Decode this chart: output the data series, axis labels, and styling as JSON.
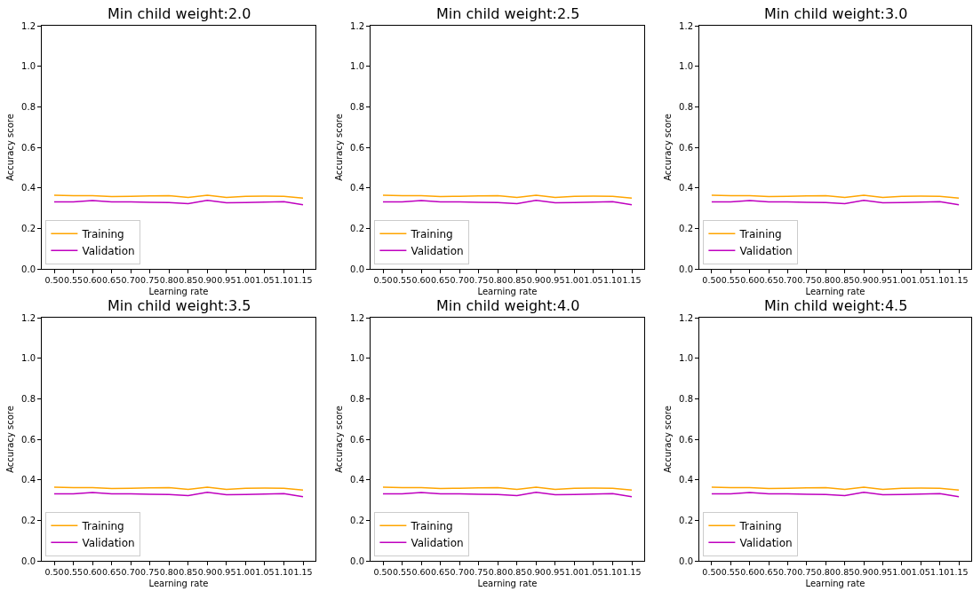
{
  "chart_data": [
    {
      "type": "line",
      "title": "Min child weight:2.0",
      "xlabel": "Learning rate",
      "ylabel": "Accuracy score",
      "x": [
        0.5,
        0.55,
        0.6,
        0.65,
        0.7,
        0.75,
        0.8,
        0.85,
        0.9,
        0.95,
        1.0,
        1.05,
        1.1,
        1.15
      ],
      "xlim": [
        0.4675,
        1.1825
      ],
      "xticks": [
        {
          "value": 0.5,
          "label": "0.50"
        },
        {
          "value": 0.55,
          "label": "0.55"
        },
        {
          "value": 0.6,
          "label": "0.60"
        },
        {
          "value": 0.65,
          "label": "0.65"
        },
        {
          "value": 0.7,
          "label": "0.70"
        },
        {
          "value": 0.75,
          "label": "0.75"
        },
        {
          "value": 0.8,
          "label": "0.80"
        },
        {
          "value": 0.85,
          "label": "0.85"
        },
        {
          "value": 0.9,
          "label": "0.90"
        },
        {
          "value": 0.95,
          "label": "0.95"
        },
        {
          "value": 1.0,
          "label": "1.00"
        },
        {
          "value": 1.05,
          "label": "1.05"
        },
        {
          "value": 1.1,
          "label": "1.10"
        },
        {
          "value": 1.15,
          "label": "1.15"
        }
      ],
      "ylim": [
        0,
        1.2
      ],
      "yticks": [
        {
          "value": 0,
          "label": "0.0"
        },
        {
          "value": 0.2,
          "label": "0.2"
        },
        {
          "value": 0.4,
          "label": "0.4"
        },
        {
          "value": 0.6,
          "label": "0.6"
        },
        {
          "value": 0.8,
          "label": "0.8"
        },
        {
          "value": 1.0,
          "label": "1.0"
        },
        {
          "value": 1.2,
          "label": "1.2"
        }
      ],
      "grid": false,
      "legend": "bottom left",
      "marker": "none",
      "line_style": "solid",
      "series": [
        {
          "name": "Training",
          "color": "#ffa500",
          "values": [
            0.363,
            0.361,
            0.361,
            0.357,
            0.358,
            0.36,
            0.361,
            0.353,
            0.363,
            0.353,
            0.358,
            0.359,
            0.358,
            0.349
          ]
        },
        {
          "name": "Validation",
          "color": "#bf00bf",
          "values": [
            0.331,
            0.331,
            0.337,
            0.331,
            0.331,
            0.328,
            0.327,
            0.322,
            0.338,
            0.326,
            0.327,
            0.33,
            0.332,
            0.316
          ]
        }
      ]
    },
    {
      "type": "line",
      "title": "Min child weight:2.5",
      "xlabel": "Learning rate",
      "ylabel": "Accuracy score",
      "x": [
        0.5,
        0.55,
        0.6,
        0.65,
        0.7,
        0.75,
        0.8,
        0.85,
        0.9,
        0.95,
        1.0,
        1.05,
        1.1,
        1.15
      ],
      "xlim": [
        0.4675,
        1.1825
      ],
      "xticks": [
        {
          "value": 0.5,
          "label": "0.50"
        },
        {
          "value": 0.55,
          "label": "0.55"
        },
        {
          "value": 0.6,
          "label": "0.60"
        },
        {
          "value": 0.65,
          "label": "0.65"
        },
        {
          "value": 0.7,
          "label": "0.70"
        },
        {
          "value": 0.75,
          "label": "0.75"
        },
        {
          "value": 0.8,
          "label": "0.80"
        },
        {
          "value": 0.85,
          "label": "0.85"
        },
        {
          "value": 0.9,
          "label": "0.90"
        },
        {
          "value": 0.95,
          "label": "0.95"
        },
        {
          "value": 1.0,
          "label": "1.00"
        },
        {
          "value": 1.05,
          "label": "1.05"
        },
        {
          "value": 1.1,
          "label": "1.10"
        },
        {
          "value": 1.15,
          "label": "1.15"
        }
      ],
      "ylim": [
        0,
        1.2
      ],
      "yticks": [
        {
          "value": 0,
          "label": "0.0"
        },
        {
          "value": 0.2,
          "label": "0.2"
        },
        {
          "value": 0.4,
          "label": "0.4"
        },
        {
          "value": 0.6,
          "label": "0.6"
        },
        {
          "value": 0.8,
          "label": "0.8"
        },
        {
          "value": 1.0,
          "label": "1.0"
        },
        {
          "value": 1.2,
          "label": "1.2"
        }
      ],
      "grid": false,
      "legend": "bottom left",
      "marker": "none",
      "line_style": "solid",
      "series": [
        {
          "name": "Training",
          "color": "#ffa500",
          "values": [
            0.363,
            0.361,
            0.361,
            0.357,
            0.358,
            0.36,
            0.361,
            0.353,
            0.363,
            0.353,
            0.358,
            0.359,
            0.358,
            0.349
          ]
        },
        {
          "name": "Validation",
          "color": "#bf00bf",
          "values": [
            0.331,
            0.331,
            0.337,
            0.331,
            0.331,
            0.328,
            0.327,
            0.322,
            0.338,
            0.326,
            0.327,
            0.33,
            0.332,
            0.316
          ]
        }
      ]
    },
    {
      "type": "line",
      "title": "Min child weight:3.0",
      "xlabel": "Learning rate",
      "ylabel": "Accuracy score",
      "x": [
        0.5,
        0.55,
        0.6,
        0.65,
        0.7,
        0.75,
        0.8,
        0.85,
        0.9,
        0.95,
        1.0,
        1.05,
        1.1,
        1.15
      ],
      "xlim": [
        0.4675,
        1.1825
      ],
      "xticks": [
        {
          "value": 0.5,
          "label": "0.50"
        },
        {
          "value": 0.55,
          "label": "0.55"
        },
        {
          "value": 0.6,
          "label": "0.60"
        },
        {
          "value": 0.65,
          "label": "0.65"
        },
        {
          "value": 0.7,
          "label": "0.70"
        },
        {
          "value": 0.75,
          "label": "0.75"
        },
        {
          "value": 0.8,
          "label": "0.80"
        },
        {
          "value": 0.85,
          "label": "0.85"
        },
        {
          "value": 0.9,
          "label": "0.90"
        },
        {
          "value": 0.95,
          "label": "0.95"
        },
        {
          "value": 1.0,
          "label": "1.00"
        },
        {
          "value": 1.05,
          "label": "1.05"
        },
        {
          "value": 1.1,
          "label": "1.10"
        },
        {
          "value": 1.15,
          "label": "1.15"
        }
      ],
      "ylim": [
        0,
        1.2
      ],
      "yticks": [
        {
          "value": 0,
          "label": "0.0"
        },
        {
          "value": 0.2,
          "label": "0.2"
        },
        {
          "value": 0.4,
          "label": "0.4"
        },
        {
          "value": 0.6,
          "label": "0.6"
        },
        {
          "value": 0.8,
          "label": "0.8"
        },
        {
          "value": 1.0,
          "label": "1.0"
        },
        {
          "value": 1.2,
          "label": "1.2"
        }
      ],
      "grid": false,
      "legend": "bottom left",
      "marker": "none",
      "line_style": "solid",
      "series": [
        {
          "name": "Training",
          "color": "#ffa500",
          "values": [
            0.363,
            0.361,
            0.361,
            0.357,
            0.358,
            0.36,
            0.361,
            0.353,
            0.363,
            0.353,
            0.358,
            0.359,
            0.358,
            0.349
          ]
        },
        {
          "name": "Validation",
          "color": "#bf00bf",
          "values": [
            0.331,
            0.331,
            0.337,
            0.331,
            0.331,
            0.328,
            0.327,
            0.322,
            0.338,
            0.326,
            0.327,
            0.33,
            0.332,
            0.316
          ]
        }
      ]
    },
    {
      "type": "line",
      "title": "Min child weight:3.5",
      "xlabel": "Learning rate",
      "ylabel": "Accuracy score",
      "x": [
        0.5,
        0.55,
        0.6,
        0.65,
        0.7,
        0.75,
        0.8,
        0.85,
        0.9,
        0.95,
        1.0,
        1.05,
        1.1,
        1.15
      ],
      "xlim": [
        0.4675,
        1.1825
      ],
      "xticks": [
        {
          "value": 0.5,
          "label": "0.50"
        },
        {
          "value": 0.55,
          "label": "0.55"
        },
        {
          "value": 0.6,
          "label": "0.60"
        },
        {
          "value": 0.65,
          "label": "0.65"
        },
        {
          "value": 0.7,
          "label": "0.70"
        },
        {
          "value": 0.75,
          "label": "0.75"
        },
        {
          "value": 0.8,
          "label": "0.80"
        },
        {
          "value": 0.85,
          "label": "0.85"
        },
        {
          "value": 0.9,
          "label": "0.90"
        },
        {
          "value": 0.95,
          "label": "0.95"
        },
        {
          "value": 1.0,
          "label": "1.00"
        },
        {
          "value": 1.05,
          "label": "1.05"
        },
        {
          "value": 1.1,
          "label": "1.10"
        },
        {
          "value": 1.15,
          "label": "1.15"
        }
      ],
      "ylim": [
        0,
        1.2
      ],
      "yticks": [
        {
          "value": 0,
          "label": "0.0"
        },
        {
          "value": 0.2,
          "label": "0.2"
        },
        {
          "value": 0.4,
          "label": "0.4"
        },
        {
          "value": 0.6,
          "label": "0.6"
        },
        {
          "value": 0.8,
          "label": "0.8"
        },
        {
          "value": 1.0,
          "label": "1.0"
        },
        {
          "value": 1.2,
          "label": "1.2"
        }
      ],
      "grid": false,
      "legend": "bottom left",
      "marker": "none",
      "line_style": "solid",
      "series": [
        {
          "name": "Training",
          "color": "#ffa500",
          "values": [
            0.363,
            0.361,
            0.361,
            0.357,
            0.358,
            0.36,
            0.361,
            0.353,
            0.363,
            0.353,
            0.358,
            0.359,
            0.358,
            0.349
          ]
        },
        {
          "name": "Validation",
          "color": "#bf00bf",
          "values": [
            0.331,
            0.331,
            0.337,
            0.331,
            0.331,
            0.328,
            0.327,
            0.322,
            0.338,
            0.326,
            0.327,
            0.33,
            0.332,
            0.316
          ]
        }
      ]
    },
    {
      "type": "line",
      "title": "Min child weight:4.0",
      "xlabel": "Learning rate",
      "ylabel": "Accuracy score",
      "x": [
        0.5,
        0.55,
        0.6,
        0.65,
        0.7,
        0.75,
        0.8,
        0.85,
        0.9,
        0.95,
        1.0,
        1.05,
        1.1,
        1.15
      ],
      "xlim": [
        0.4675,
        1.1825
      ],
      "xticks": [
        {
          "value": 0.5,
          "label": "0.50"
        },
        {
          "value": 0.55,
          "label": "0.55"
        },
        {
          "value": 0.6,
          "label": "0.60"
        },
        {
          "value": 0.65,
          "label": "0.65"
        },
        {
          "value": 0.7,
          "label": "0.70"
        },
        {
          "value": 0.75,
          "label": "0.75"
        },
        {
          "value": 0.8,
          "label": "0.80"
        },
        {
          "value": 0.85,
          "label": "0.85"
        },
        {
          "value": 0.9,
          "label": "0.90"
        },
        {
          "value": 0.95,
          "label": "0.95"
        },
        {
          "value": 1.0,
          "label": "1.00"
        },
        {
          "value": 1.05,
          "label": "1.05"
        },
        {
          "value": 1.1,
          "label": "1.10"
        },
        {
          "value": 1.15,
          "label": "1.15"
        }
      ],
      "ylim": [
        0,
        1.2
      ],
      "yticks": [
        {
          "value": 0,
          "label": "0.0"
        },
        {
          "value": 0.2,
          "label": "0.2"
        },
        {
          "value": 0.4,
          "label": "0.4"
        },
        {
          "value": 0.6,
          "label": "0.6"
        },
        {
          "value": 0.8,
          "label": "0.8"
        },
        {
          "value": 1.0,
          "label": "1.0"
        },
        {
          "value": 1.2,
          "label": "1.2"
        }
      ],
      "grid": false,
      "legend": "bottom left",
      "marker": "none",
      "line_style": "solid",
      "series": [
        {
          "name": "Training",
          "color": "#ffa500",
          "values": [
            0.363,
            0.361,
            0.361,
            0.357,
            0.358,
            0.36,
            0.361,
            0.353,
            0.363,
            0.353,
            0.358,
            0.359,
            0.358,
            0.349
          ]
        },
        {
          "name": "Validation",
          "color": "#bf00bf",
          "values": [
            0.331,
            0.331,
            0.337,
            0.331,
            0.331,
            0.328,
            0.327,
            0.322,
            0.338,
            0.326,
            0.327,
            0.33,
            0.332,
            0.316
          ]
        }
      ]
    },
    {
      "type": "line",
      "title": "Min child weight:4.5",
      "xlabel": "Learning rate",
      "ylabel": "Accuracy score",
      "x": [
        0.5,
        0.55,
        0.6,
        0.65,
        0.7,
        0.75,
        0.8,
        0.85,
        0.9,
        0.95,
        1.0,
        1.05,
        1.1,
        1.15
      ],
      "xlim": [
        0.4675,
        1.1825
      ],
      "xticks": [
        {
          "value": 0.5,
          "label": "0.50"
        },
        {
          "value": 0.55,
          "label": "0.55"
        },
        {
          "value": 0.6,
          "label": "0.60"
        },
        {
          "value": 0.65,
          "label": "0.65"
        },
        {
          "value": 0.7,
          "label": "0.70"
        },
        {
          "value": 0.75,
          "label": "0.75"
        },
        {
          "value": 0.8,
          "label": "0.80"
        },
        {
          "value": 0.85,
          "label": "0.85"
        },
        {
          "value": 0.9,
          "label": "0.90"
        },
        {
          "value": 0.95,
          "label": "0.95"
        },
        {
          "value": 1.0,
          "label": "1.00"
        },
        {
          "value": 1.05,
          "label": "1.05"
        },
        {
          "value": 1.1,
          "label": "1.10"
        },
        {
          "value": 1.15,
          "label": "1.15"
        }
      ],
      "ylim": [
        0,
        1.2
      ],
      "yticks": [
        {
          "value": 0,
          "label": "0.0"
        },
        {
          "value": 0.2,
          "label": "0.2"
        },
        {
          "value": 0.4,
          "label": "0.4"
        },
        {
          "value": 0.6,
          "label": "0.6"
        },
        {
          "value": 0.8,
          "label": "0.8"
        },
        {
          "value": 1.0,
          "label": "1.0"
        },
        {
          "value": 1.2,
          "label": "1.2"
        }
      ],
      "grid": false,
      "legend": "bottom left",
      "marker": "none",
      "line_style": "solid",
      "series": [
        {
          "name": "Training",
          "color": "#ffa500",
          "values": [
            0.363,
            0.361,
            0.361,
            0.357,
            0.358,
            0.36,
            0.361,
            0.353,
            0.363,
            0.353,
            0.358,
            0.359,
            0.358,
            0.349
          ]
        },
        {
          "name": "Validation",
          "color": "#bf00bf",
          "values": [
            0.331,
            0.331,
            0.337,
            0.331,
            0.331,
            0.328,
            0.327,
            0.322,
            0.338,
            0.326,
            0.327,
            0.33,
            0.332,
            0.316
          ]
        }
      ]
    }
  ]
}
